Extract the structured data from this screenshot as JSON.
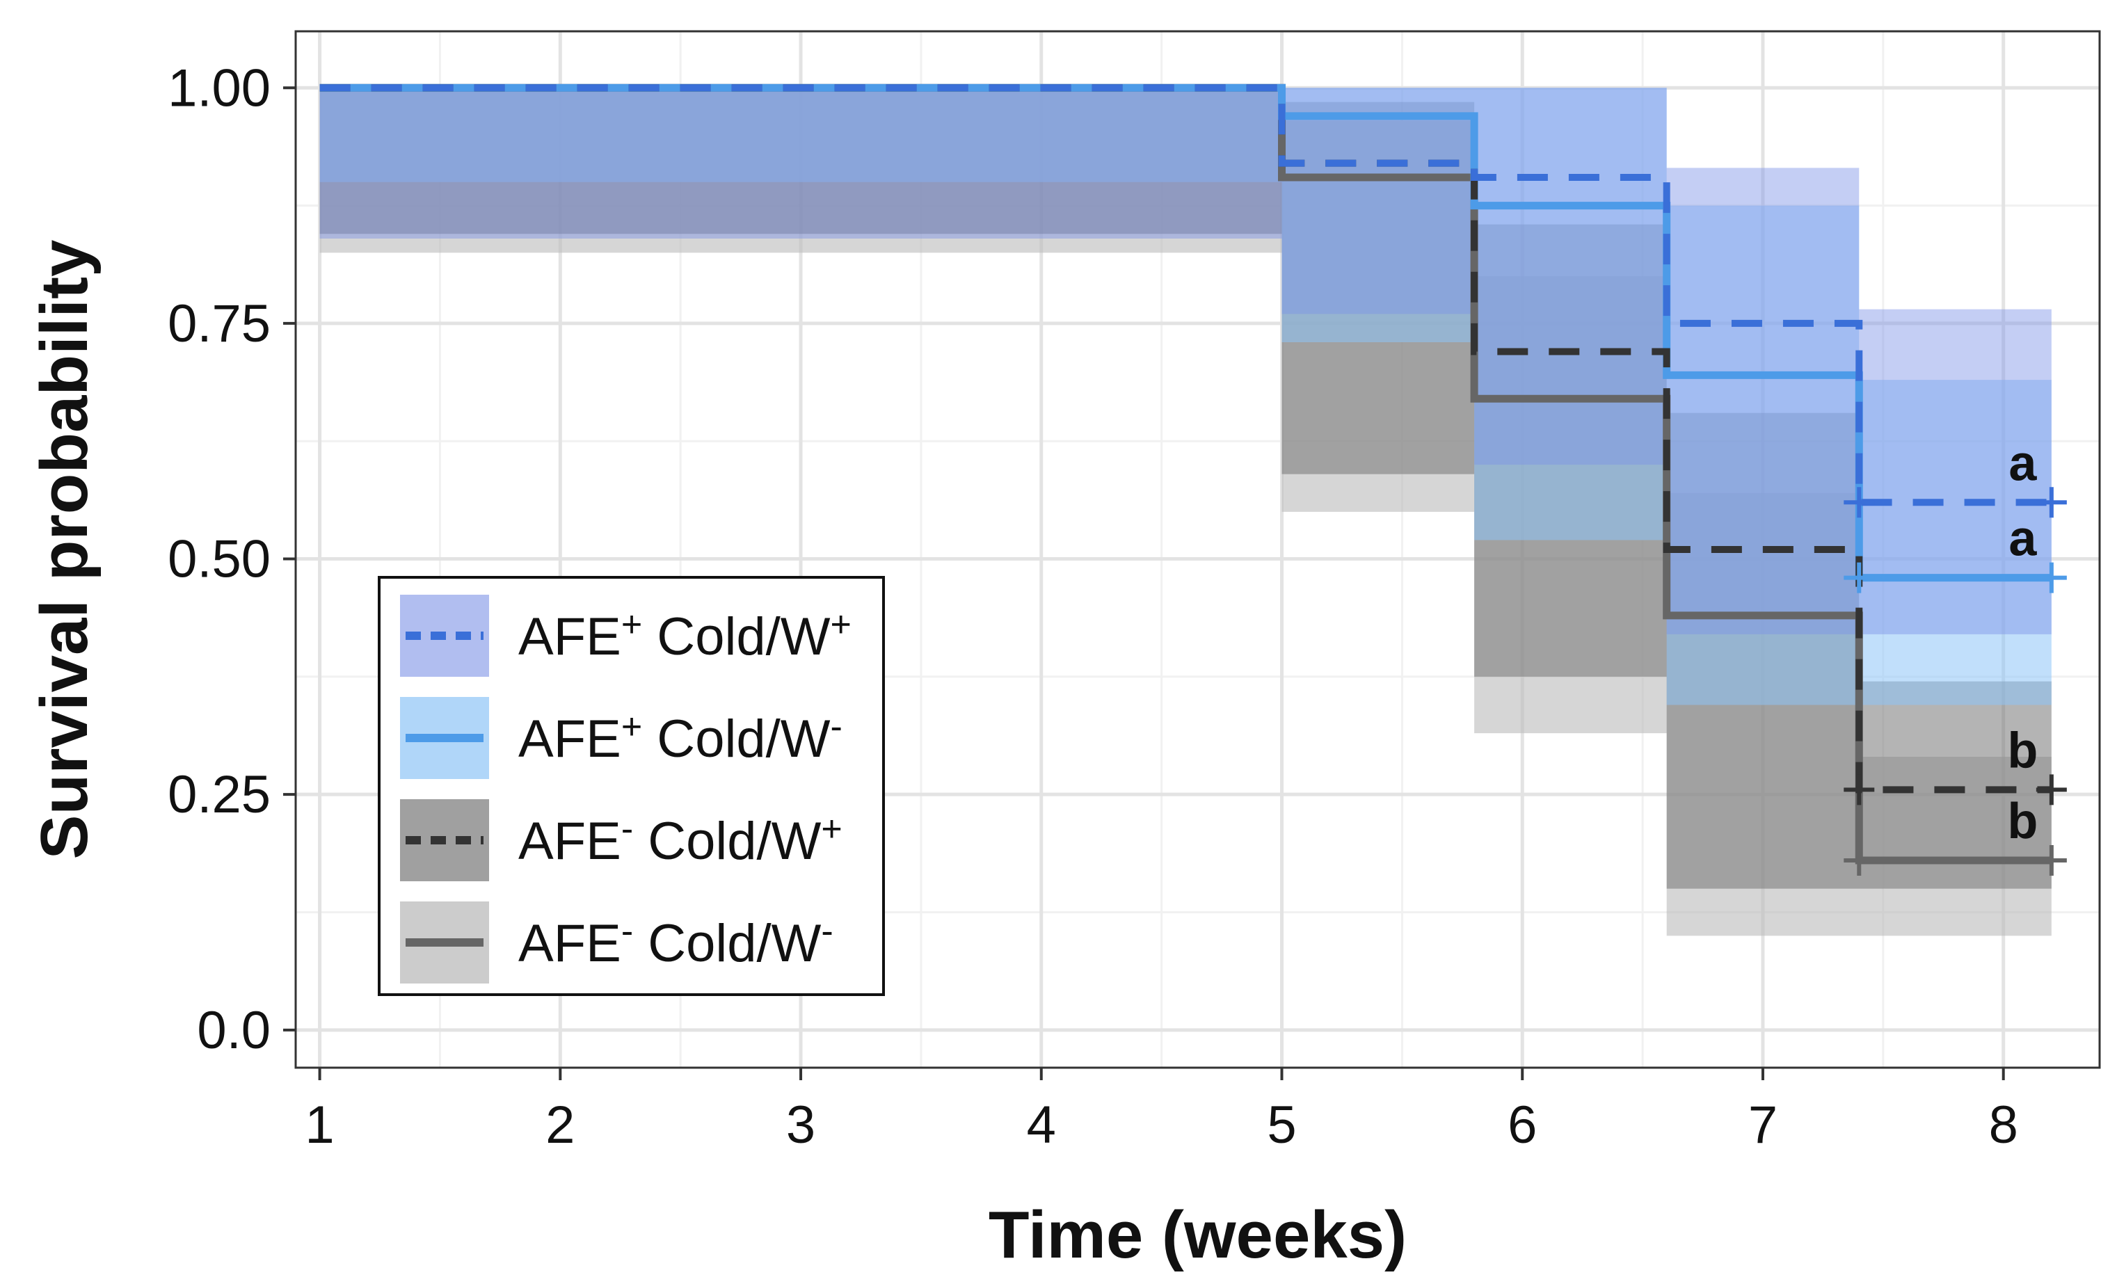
{
  "chart_data": {
    "type": "line",
    "subtype": "kaplan-meier step curves with confidence bands",
    "title": "",
    "xlabel": "Time (weeks)",
    "ylabel": "Survival probability",
    "xlim": [
      0.9,
      8.4
    ],
    "ylim": [
      -0.04,
      1.06
    ],
    "x_ticks": [
      1,
      2,
      3,
      4,
      5,
      6,
      7,
      8
    ],
    "x_tick_labels": [
      "1",
      "2",
      "3",
      "4",
      "5",
      "6",
      "7",
      "8"
    ],
    "y_ticks": [
      0.0,
      0.25,
      0.5,
      0.75,
      1.0
    ],
    "y_tick_labels": [
      "0.0",
      "0.25",
      "0.50",
      "0.75",
      "1.00"
    ],
    "grid": true,
    "legend_position": "bottom-left",
    "series": [
      {
        "name_main": "AFE",
        "name_sup": "+",
        "name_rest": " Cold/W",
        "name_sup2": "+",
        "line_color": "#3a6fd8",
        "band_color": "#7d93e6",
        "band_opacity": 0.45,
        "dashed": true,
        "x": [
          1,
          5,
          5.8,
          6.6,
          7.4,
          8.2
        ],
        "y": [
          1.0,
          0.92,
          0.905,
          0.75,
          0.56,
          0.56
        ],
        "upper": [
          1.0,
          1.0,
          1.0,
          0.915,
          0.765,
          0.765
        ],
        "lower": [
          1.0,
          0.84,
          0.76,
          0.6,
          0.42,
          0.42
        ],
        "censor": [
          8.2,
          0.56
        ],
        "annotation": "a"
      },
      {
        "name_main": "AFE",
        "name_sup": "+",
        "name_rest": " Cold/W",
        "name_sup2": "-",
        "line_color": "#4d9be8",
        "band_color": "#8ec4f7",
        "band_opacity": 0.55,
        "dashed": false,
        "x": [
          1,
          5,
          5.8,
          6.6,
          7.4,
          8.2
        ],
        "y": [
          1.0,
          0.97,
          0.875,
          0.695,
          0.48,
          0.48
        ],
        "upper": [
          1.0,
          1.0,
          1.0,
          0.875,
          0.69,
          0.69
        ],
        "lower": [
          1.0,
          0.9,
          0.73,
          0.52,
          0.345,
          0.345
        ],
        "censor": [
          8.2,
          0.48
        ],
        "annotation": "a"
      },
      {
        "name_main": "AFE",
        "name_sup": "-",
        "name_rest": " Cold/W",
        "name_sup2": "+",
        "line_color": "#333333",
        "band_color": "#777777",
        "band_opacity": 0.55,
        "dashed": true,
        "x": [
          1,
          5,
          5.8,
          6.6,
          7.4,
          8.2
        ],
        "y": [
          1.0,
          0.92,
          0.72,
          0.51,
          0.255,
          0.255
        ],
        "upper": [
          1.0,
          0.985,
          0.855,
          0.655,
          0.37,
          0.37
        ],
        "lower": [
          1.0,
          0.845,
          0.59,
          0.375,
          0.15,
          0.15
        ],
        "censor": [
          8.2,
          0.255
        ],
        "annotation": "b"
      },
      {
        "name_main": "AFE",
        "name_sup": "-",
        "name_rest": " Cold/W",
        "name_sup2": "-",
        "line_color": "#666666",
        "band_color": "#bbbbbb",
        "band_opacity": 0.6,
        "dashed": false,
        "x": [
          1,
          5,
          5.8,
          6.6,
          7.4,
          8.2
        ],
        "y": [
          1.0,
          0.905,
          0.67,
          0.44,
          0.18,
          0.18
        ],
        "upper": [
          1.0,
          0.965,
          0.8,
          0.57,
          0.29,
          0.29
        ],
        "lower": [
          1.0,
          0.825,
          0.55,
          0.315,
          0.1,
          0.1
        ],
        "censor": [
          8.2,
          0.18
        ],
        "annotation": "b"
      }
    ]
  }
}
